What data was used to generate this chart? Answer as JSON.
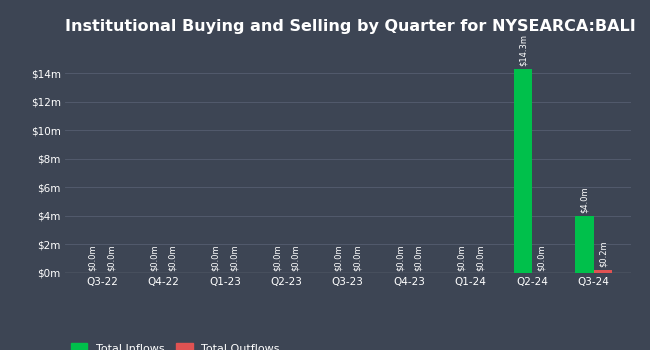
{
  "title": "Institutional Buying and Selling by Quarter for NYSEARCA:BALI",
  "quarters": [
    "Q3-22",
    "Q4-22",
    "Q1-23",
    "Q2-23",
    "Q3-23",
    "Q4-23",
    "Q1-24",
    "Q2-24",
    "Q3-24"
  ],
  "inflows": [
    0.0,
    0.0,
    0.0,
    0.0,
    0.0,
    0.0,
    0.0,
    14.3,
    4.0
  ],
  "outflows": [
    0.0,
    0.0,
    0.0,
    0.0,
    0.0,
    0.0,
    0.0,
    0.0,
    0.2
  ],
  "inflow_labels": [
    "$0.0m",
    "$0.0m",
    "$0.0m",
    "$0.0m",
    "$0.0m",
    "$0.0m",
    "$0.0m",
    "$14.3m",
    "$4.0m"
  ],
  "outflow_labels": [
    "$0.0m",
    "$0.0m",
    "$0.0m",
    "$0.0m",
    "$0.0m",
    "$0.0m",
    "$0.0m",
    "$0.0m",
    "$0.2m"
  ],
  "bg_color": "#3d4554",
  "plot_bg_color": "#3d4554",
  "inflow_color": "#00c04b",
  "outflow_color": "#e05252",
  "grid_color": "#555e70",
  "text_color": "#ffffff",
  "yticks": [
    0,
    2,
    4,
    6,
    8,
    10,
    12,
    14
  ],
  "ytick_labels": [
    "$0m",
    "$2m",
    "$4m",
    "$6m",
    "$8m",
    "$10m",
    "$12m",
    "$14m"
  ],
  "ylim": [
    0,
    16.2
  ],
  "bar_width": 0.3,
  "title_fontsize": 11.5,
  "label_fontsize": 6.0,
  "tick_fontsize": 7.5,
  "legend_inflow": "Total Inflows",
  "legend_outflow": "Total Outflows"
}
